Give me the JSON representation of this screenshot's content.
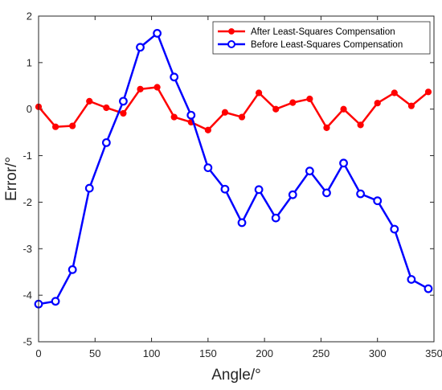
{
  "chart_data": {
    "type": "line",
    "title": "",
    "xlabel": "Angle/°",
    "ylabel": "Error/°",
    "xlim": [
      0,
      350
    ],
    "ylim": [
      -5,
      2
    ],
    "xticks": [
      0,
      50,
      100,
      150,
      200,
      250,
      300,
      350
    ],
    "yticks": [
      -5,
      -4,
      -3,
      -2,
      -1,
      0,
      1,
      2
    ],
    "grid": false,
    "legend_position": "top-right",
    "series": [
      {
        "name": "After Least-Squares Compensation",
        "color": "#ff0000",
        "marker": "filled-circle",
        "x": [
          0,
          15,
          30,
          45,
          60,
          75,
          90,
          105,
          120,
          135,
          150,
          165,
          180,
          195,
          210,
          225,
          240,
          255,
          270,
          285,
          300,
          315,
          330,
          345
        ],
        "values": [
          0.05,
          -0.38,
          -0.36,
          0.17,
          0.03,
          -0.09,
          0.43,
          0.47,
          -0.17,
          -0.28,
          -0.45,
          -0.07,
          -0.17,
          0.35,
          0.0,
          0.14,
          0.22,
          -0.4,
          0.0,
          -0.34,
          0.13,
          0.35,
          0.07,
          0.37
        ]
      },
      {
        "name": "Before Least-Squares Compensation",
        "color": "#0000ff",
        "marker": "open-circle",
        "x": [
          0,
          15,
          30,
          45,
          60,
          75,
          90,
          105,
          120,
          135,
          150,
          165,
          180,
          195,
          210,
          225,
          240,
          255,
          270,
          285,
          300,
          315,
          330,
          345
        ],
        "values": [
          -4.19,
          -4.13,
          -3.45,
          -1.7,
          -0.72,
          0.17,
          1.33,
          1.63,
          0.69,
          -0.13,
          -1.26,
          -1.72,
          -2.44,
          -1.73,
          -2.34,
          -1.84,
          -1.33,
          -1.8,
          -1.16,
          -1.82,
          -1.97,
          -2.58,
          -3.66,
          -3.86
        ]
      }
    ]
  }
}
